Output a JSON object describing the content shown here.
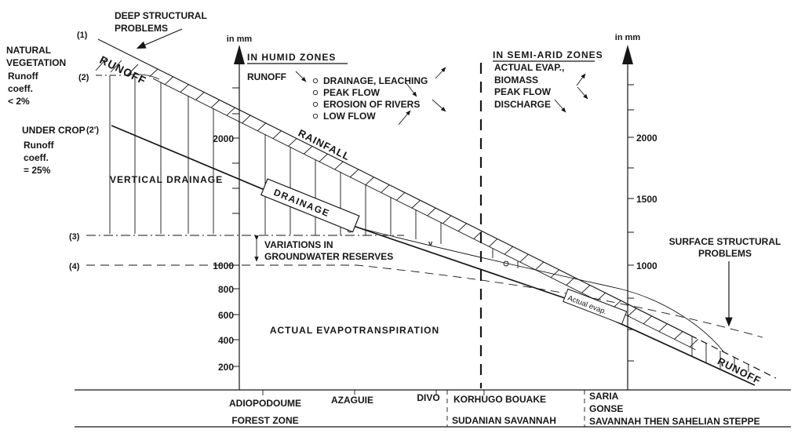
{
  "colors": {
    "ink": "#161616",
    "paper": "#ffffff"
  },
  "markers": {
    "m1": "(1)",
    "m2": "(2)",
    "m2prime": "(2')",
    "m3": "(3)",
    "m4": "(4)"
  },
  "left_panel": {
    "deep_structural_line1": "DEEP STRUCTURAL",
    "deep_structural_line2": "PROBLEMS",
    "natural_vegetation_line1": "NATURAL",
    "natural_vegetation_line2": "VEGETATION",
    "nv_coeff_line1": "Runoff",
    "nv_coeff_line2": "coeff.",
    "nv_coeff_line3": "< 2%",
    "under_crop": "UNDER CROP",
    "uc_coeff_line1": "Runoff",
    "uc_coeff_line2": "coeff.",
    "uc_coeff_line3": "= 25%"
  },
  "humid": {
    "title": "IN HUMID ZONES",
    "runoff": "RUNOFF",
    "items": [
      "DRAINAGE, LEACHING",
      "PEAK FLOW",
      "EROSION OF RIVERS",
      "LOW FLOW"
    ]
  },
  "semi_arid": {
    "title": "IN SEMI-ARID ZONES",
    "items": [
      "ACTUAL EVAP.,",
      "BIOMASS",
      "PEAK FLOW",
      "DISCHARGE"
    ]
  },
  "axis_left": {
    "unit": "in mm",
    "ticks": [
      "2000",
      "1000",
      "800",
      "600",
      "400",
      "200"
    ]
  },
  "axis_right": {
    "unit": "in mm",
    "ticks": [
      "2000",
      "1500",
      "1000"
    ]
  },
  "curves": {
    "runoff_top": "RUNOFF",
    "rainfall": "RAINFALL",
    "vertical_drainage": "VERTICAL DRAINAGE",
    "drainage": "DRAINAGE",
    "variations_line1": "VARIATIONS IN",
    "variations_line2": "GROUNDWATER RESERVES",
    "actual_evapotranspiration": "ACTUAL EVAPOTRANSPIRATION",
    "actual_evap_small": "Actual evap.",
    "runoff_bottom": "RUNOFF",
    "surface_structural_line1": "SURFACE STRUCTURAL",
    "surface_structural_line2": "PROBLEMS"
  },
  "stations": [
    "ADIOPODOUME",
    "AZAGUIE",
    "DIVO",
    "KORHUGO BOUAKE",
    "SARIA",
    "GONSE"
  ],
  "zones": [
    "FOREST ZONE",
    "SUDANIAN SAVANNAH",
    "SAVANNAH THEN SAHELIAN STEPPE"
  ]
}
